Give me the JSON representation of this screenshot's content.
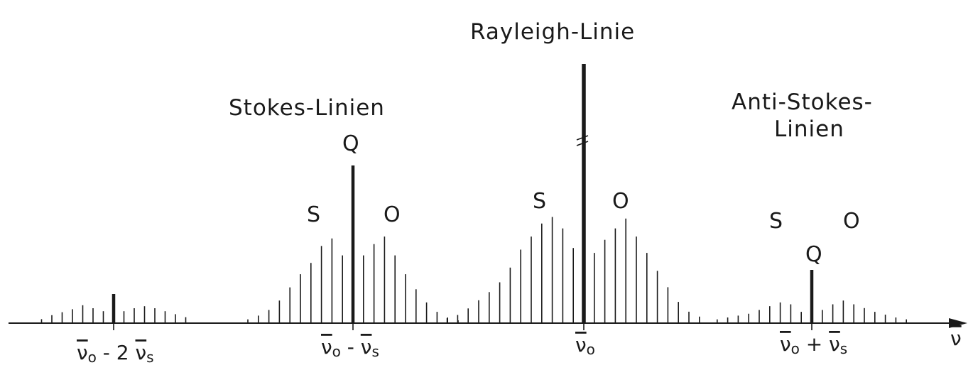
{
  "labels": {
    "rayleigh": "Rayleigh-Linie",
    "stokes": "Stokes-Linien",
    "anti_stokes_1": "Anti-Stokes-",
    "anti_stokes_2": "Linien",
    "stokes_Q": "Q",
    "stokes_S": "S",
    "stokes_O": "O",
    "rayleigh_S": "S",
    "rayleigh_O": "O",
    "anti_S": "S",
    "anti_O": "O",
    "anti_Q": "Q"
  },
  "axis": {
    "symbol": "ν",
    "ticks": [
      {
        "base": "ν",
        "sub": "o",
        "op": " - 2 ",
        "base2": "ν",
        "sub2": "s"
      },
      {
        "base": "ν",
        "sub": "o",
        "op": " - ",
        "base2": "ν",
        "sub2": "s"
      },
      {
        "base": "ν",
        "sub": "o",
        "op": "",
        "base2": "",
        "sub2": ""
      },
      {
        "base": "ν",
        "sub": "o",
        "op": " + ",
        "base2": "ν",
        "sub2": "s"
      }
    ]
  },
  "spectrum": {
    "groups": [
      {
        "name": "second-stokes",
        "q": 0.14,
        "s": [
          0.02,
          0.04,
          0.055,
          0.07,
          0.09,
          0.075,
          0.06
        ],
        "o": [
          0.06,
          0.075,
          0.085,
          0.075,
          0.06,
          0.045,
          0.03
        ]
      },
      {
        "name": "stokes",
        "q": 0.83,
        "s": [
          0.02,
          0.04,
          0.07,
          0.12,
          0.19,
          0.26,
          0.32,
          0.41,
          0.45,
          0.36
        ],
        "o": [
          0.36,
          0.42,
          0.46,
          0.36,
          0.26,
          0.18,
          0.11,
          0.06,
          0.03,
          0.015
        ]
      },
      {
        "name": "rayleigh",
        "q": 1.0,
        "s": [
          0.03,
          0.05,
          0.09,
          0.14,
          0.19,
          0.25,
          0.34,
          0.45,
          0.53,
          0.61,
          0.65,
          0.58,
          0.46
        ],
        "o": [
          0.43,
          0.51,
          0.58,
          0.64,
          0.53,
          0.43,
          0.32,
          0.22,
          0.13,
          0.07,
          0.04
        ]
      },
      {
        "name": "anti-stokes",
        "q": 0.28,
        "s": [
          0.02,
          0.03,
          0.04,
          0.05,
          0.07,
          0.09,
          0.11,
          0.1,
          0.06
        ],
        "o": [
          0.07,
          0.1,
          0.12,
          0.1,
          0.08,
          0.06,
          0.045,
          0.03,
          0.02
        ]
      }
    ]
  }
}
